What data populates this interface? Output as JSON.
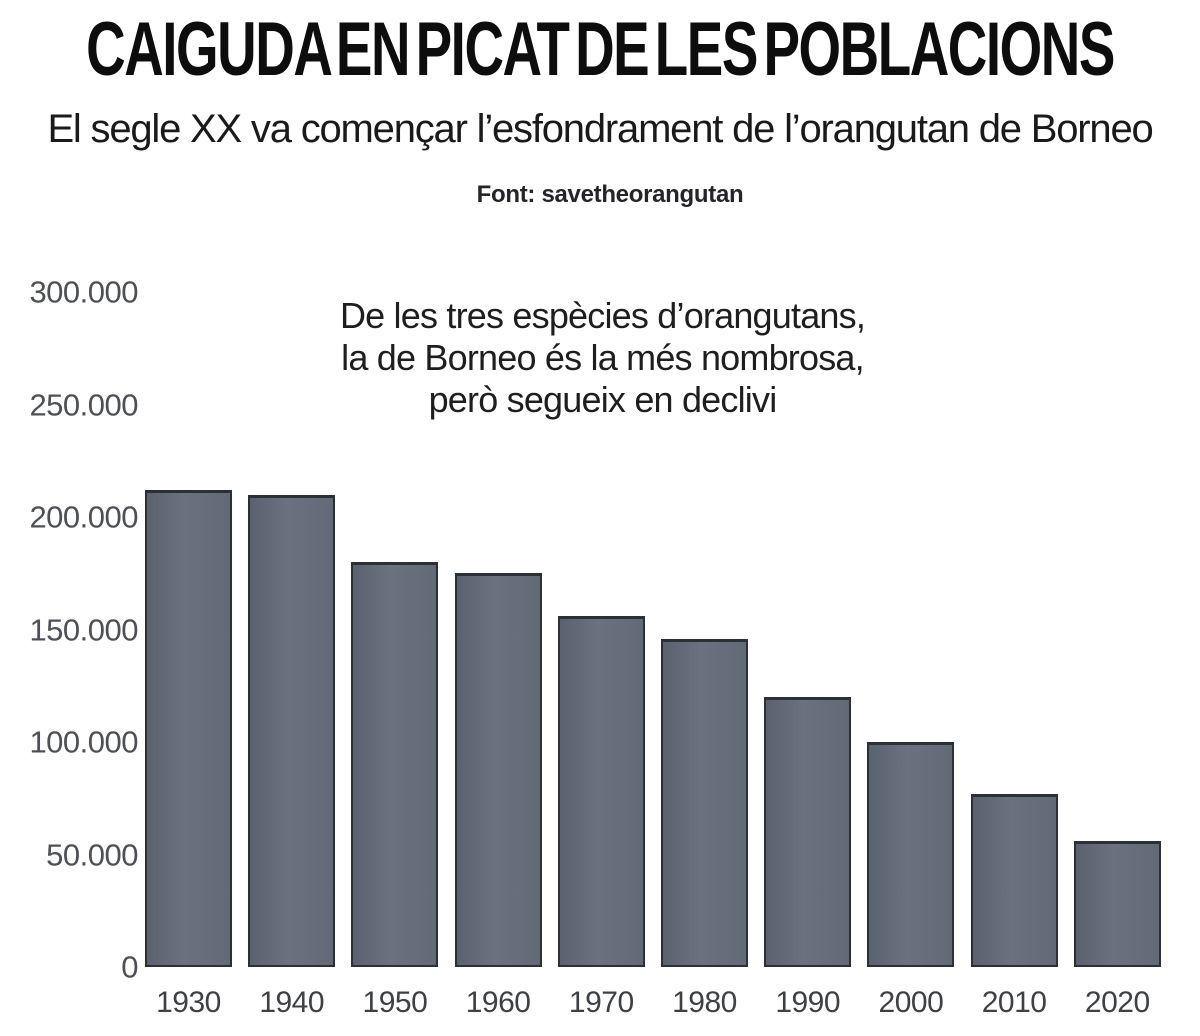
{
  "header": {
    "title": "CAIGUDA EN PICAT DE LES POBLACIONS",
    "subtitle": "El segle XX va començar l’esfondrament de l’orangutan de Borneo",
    "source": "Font: savetheorangutan"
  },
  "annotation": {
    "lines": [
      "De les tres espècies d’orangutans,",
      "la de Borneo és la més nombrosa,",
      "però segueix en declivi"
    ]
  },
  "chart_data": {
    "type": "bar",
    "title": "CAIGUDA EN PICAT DE LES POBLACIONS",
    "subtitle": "El segle XX va començar l’esfondrament de l’orangutan de Borneo",
    "source": "Font: savetheorangutan",
    "annotation": "De les tres espècies d’orangutans, la de Borneo és la més nombrosa, però segueix en declivi",
    "categories": [
      "1930",
      "1940",
      "1950",
      "1960",
      "1970",
      "1980",
      "1990",
      "2000",
      "2010",
      "2020"
    ],
    "values": [
      212000,
      210000,
      180000,
      175000,
      156000,
      146000,
      120000,
      100000,
      77000,
      56000
    ],
    "xlabel": "",
    "ylabel": "",
    "ylim": [
      0,
      300000
    ],
    "y_ticks": [
      {
        "label": "300.000",
        "value": 300000
      },
      {
        "label": "250.000",
        "value": 250000
      },
      {
        "label": "200.000",
        "value": 200000
      },
      {
        "label": "150.000",
        "value": 150000
      },
      {
        "label": "100.000",
        "value": 100000
      },
      {
        "label": "50.000",
        "value": 50000
      },
      {
        "label": "0",
        "value": 0
      }
    ],
    "grid": false,
    "legend": "none",
    "bar_fill": "#626a77",
    "bar_fill_light": "#6a7280",
    "bar_fill_dark": "#5a6270",
    "bar_border": "#2b2f36"
  },
  "colors": {
    "background": "#ffffff",
    "title": "#0d0d0d",
    "subtitle": "#1a1a1a",
    "source": "#24242a",
    "annotation": "#1e1e1e",
    "y_tick": "#4d5058",
    "x_tick": "#3d4045"
  }
}
